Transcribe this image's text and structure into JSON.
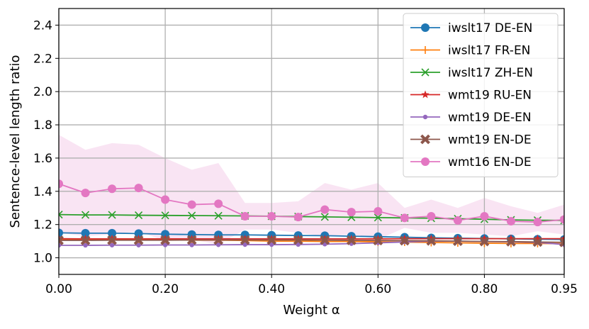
{
  "chart_data": {
    "type": "line",
    "xlabel": "Weight α",
    "ylabel": "Sentence-level length ratio",
    "xlim": [
      0,
      0.95
    ],
    "ylim": [
      0.9,
      2.5
    ],
    "grid": true,
    "legend_position": "top-right",
    "x": [
      0.0,
      0.05,
      0.1,
      0.15,
      0.2,
      0.25,
      0.3,
      0.35,
      0.4,
      0.45,
      0.5,
      0.55,
      0.6,
      0.65,
      0.7,
      0.75,
      0.8,
      0.85,
      0.9,
      0.95
    ],
    "xticks": [
      0.0,
      0.2,
      0.4,
      0.6,
      0.8,
      0.95
    ],
    "xtick_labels": [
      "0.00",
      "0.20",
      "0.40",
      "0.60",
      "0.80",
      "0.95"
    ],
    "yticks": [
      1.0,
      1.2,
      1.4,
      1.6,
      1.8,
      2.0,
      2.2,
      2.4
    ],
    "ytick_labels": [
      "1.0",
      "1.2",
      "1.4",
      "1.6",
      "1.8",
      "2.0",
      "2.2",
      "2.4"
    ],
    "series": [
      {
        "name": "iwslt17 DE-EN",
        "color": "#1f77b4",
        "marker": "circle",
        "values": [
          1.15,
          1.148,
          1.148,
          1.146,
          1.142,
          1.14,
          1.138,
          1.138,
          1.136,
          1.134,
          1.133,
          1.13,
          1.127,
          1.124,
          1.12,
          1.118,
          1.116,
          1.114,
          1.112,
          1.11
        ]
      },
      {
        "name": "iwslt17 FR-EN",
        "color": "#ff7f0e",
        "marker": "plus",
        "values": [
          1.11,
          1.11,
          1.11,
          1.108,
          1.108,
          1.106,
          1.106,
          1.104,
          1.1,
          1.1,
          1.098,
          1.098,
          1.096,
          1.094,
          1.092,
          1.09,
          1.088,
          1.086,
          1.086,
          1.085
        ]
      },
      {
        "name": "iwslt17 ZH-EN",
        "color": "#2ca02c",
        "marker": "x",
        "values": [
          1.26,
          1.258,
          1.258,
          1.256,
          1.255,
          1.254,
          1.253,
          1.252,
          1.25,
          1.248,
          1.246,
          1.244,
          1.242,
          1.24,
          1.238,
          1.235,
          1.232,
          1.228,
          1.226,
          1.225
        ]
      },
      {
        "name": "wmt19 RU-EN",
        "color": "#d62728",
        "marker": "star",
        "values": [
          1.115,
          1.114,
          1.114,
          1.114,
          1.114,
          1.114,
          1.114,
          1.114,
          1.114,
          1.114,
          1.114,
          1.114,
          1.114,
          1.115,
          1.115,
          1.115,
          1.115,
          1.115,
          1.115,
          1.115
        ]
      },
      {
        "name": "wmt19 DE-EN",
        "color": "#9467bd",
        "marker": "dot",
        "values": [
          1.075,
          1.075,
          1.076,
          1.076,
          1.077,
          1.077,
          1.078,
          1.079,
          1.079,
          1.08,
          1.082,
          1.085,
          1.09,
          1.095,
          1.1,
          1.1,
          1.098,
          1.096,
          1.092,
          1.08
        ]
      },
      {
        "name": "wmt19 EN-DE",
        "color": "#8c564b",
        "marker": "xfilled",
        "values": [
          1.105,
          1.105,
          1.106,
          1.106,
          1.106,
          1.107,
          1.107,
          1.107,
          1.107,
          1.107,
          1.106,
          1.105,
          1.104,
          1.103,
          1.102,
          1.1,
          1.098,
          1.097,
          1.095,
          1.093
        ]
      },
      {
        "name": "wmt16 EN-DE",
        "color": "#e377c2",
        "marker": "circle",
        "values": [
          1.445,
          1.39,
          1.415,
          1.42,
          1.35,
          1.32,
          1.325,
          1.25,
          1.25,
          1.245,
          1.29,
          1.275,
          1.28,
          1.24,
          1.25,
          1.225,
          1.25,
          1.22,
          1.215,
          1.23
        ],
        "band_upper": [
          1.74,
          1.65,
          1.69,
          1.68,
          1.6,
          1.53,
          1.57,
          1.33,
          1.33,
          1.34,
          1.45,
          1.41,
          1.45,
          1.3,
          1.35,
          1.3,
          1.36,
          1.31,
          1.27,
          1.32
        ],
        "band_lower": [
          1.15,
          1.13,
          1.14,
          1.16,
          1.1,
          1.11,
          1.08,
          1.17,
          1.17,
          1.15,
          1.13,
          1.14,
          1.11,
          1.18,
          1.15,
          1.15,
          1.14,
          1.13,
          1.16,
          1.14
        ]
      }
    ]
  }
}
